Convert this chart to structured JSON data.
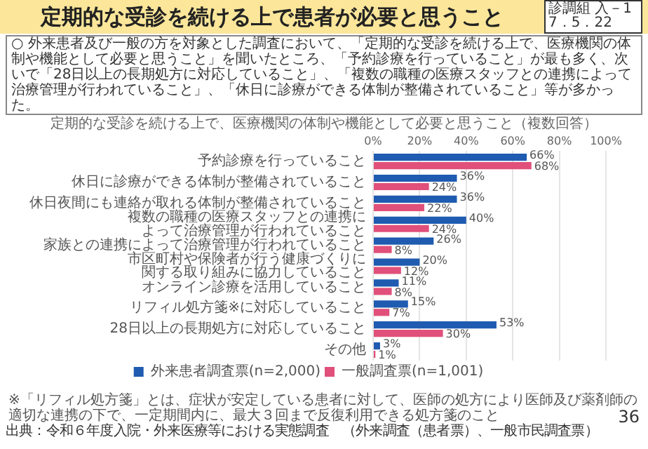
{
  "chart_data": {
    "type": "bar",
    "orientation": "horizontal",
    "title": "定期的な受診を続ける上で患者が必要と思うこと",
    "subtitle": "定期的な受診を続ける上で、医療機関の体制や機能として必要と思うこと（複数回答）",
    "annotations": [
      "診調組 入－1 7．5．22",
      "○ 外来患者及び一般の方を対象とした調査において、「定期的な受診を続ける上で、医療機関の体制や機能として必要と思うこと」を聞いたところ、「予約診療を行っていること」が最も多く、次いで「28日以上の長期処方に対応していること」、「複数の職種の医療スタッフとの連携によって治療管理が行われていること」、「休日に診療ができる体制が整備されていること」等が多かった。",
      "※「リフィル処方箋」とは、症状が安定している患者に対して、医師の処方により医師及び薬剤師の適切な連携の下で、一定期間内に、最大３回まで反復利用できる処方箋のこと",
      "出典：令和６年度入院・外来医療等における実態調査　（外来調査（患者票）、一般市民調査票）",
      "36"
    ],
    "categories": [
      "予約診療を行っていること",
      "休日に診療ができる体制が整備されていること",
      "休日夜間にも連絡が取れる体制が整備されていること",
      "複数の職種の医療スタッフとの連携によって治療管理が行われていること",
      "家族との連携によって治療管理が行われていること",
      "市区町村や保険者が行う健康づくりに関する取り組みに協力していること",
      "オンライン診療を活用していること",
      "リフィル処方箋※に対応していること",
      "28日以上の長期処方に対応していること",
      "その他"
    ],
    "series": [
      {
        "name": "外来患者調査票(n=2,000)",
        "color": "#1f5bb0",
        "values": [
          66,
          36,
          36,
          40,
          26,
          20,
          11,
          15,
          53,
          3
        ],
        "value_labels": [
          "66%",
          "36%",
          "36%",
          "40%",
          "26%",
          "20%",
          "11%",
          "15%",
          "53%",
          "3%"
        ]
      },
      {
        "name": "一般調査票(n=1,001)",
        "color": "#e0507a",
        "values": [
          68,
          24,
          22,
          24,
          8,
          12,
          8,
          7,
          30,
          1
        ],
        "value_labels": [
          "68%",
          "24%",
          "22%",
          "24%",
          "8%",
          "12%",
          "8%",
          "7%",
          "30%",
          "1%"
        ]
      }
    ],
    "xlim": [
      0,
      100
    ],
    "xticks": [
      {
        "value": 0,
        "label": "0%"
      },
      {
        "value": 20,
        "label": "20%"
      },
      {
        "value": 40,
        "label": "40%"
      },
      {
        "value": 60,
        "label": "60%"
      },
      {
        "value": 80,
        "label": "80%"
      },
      {
        "value": 100,
        "label": "100%"
      }
    ],
    "grid": "x",
    "legend": "bottom"
  }
}
